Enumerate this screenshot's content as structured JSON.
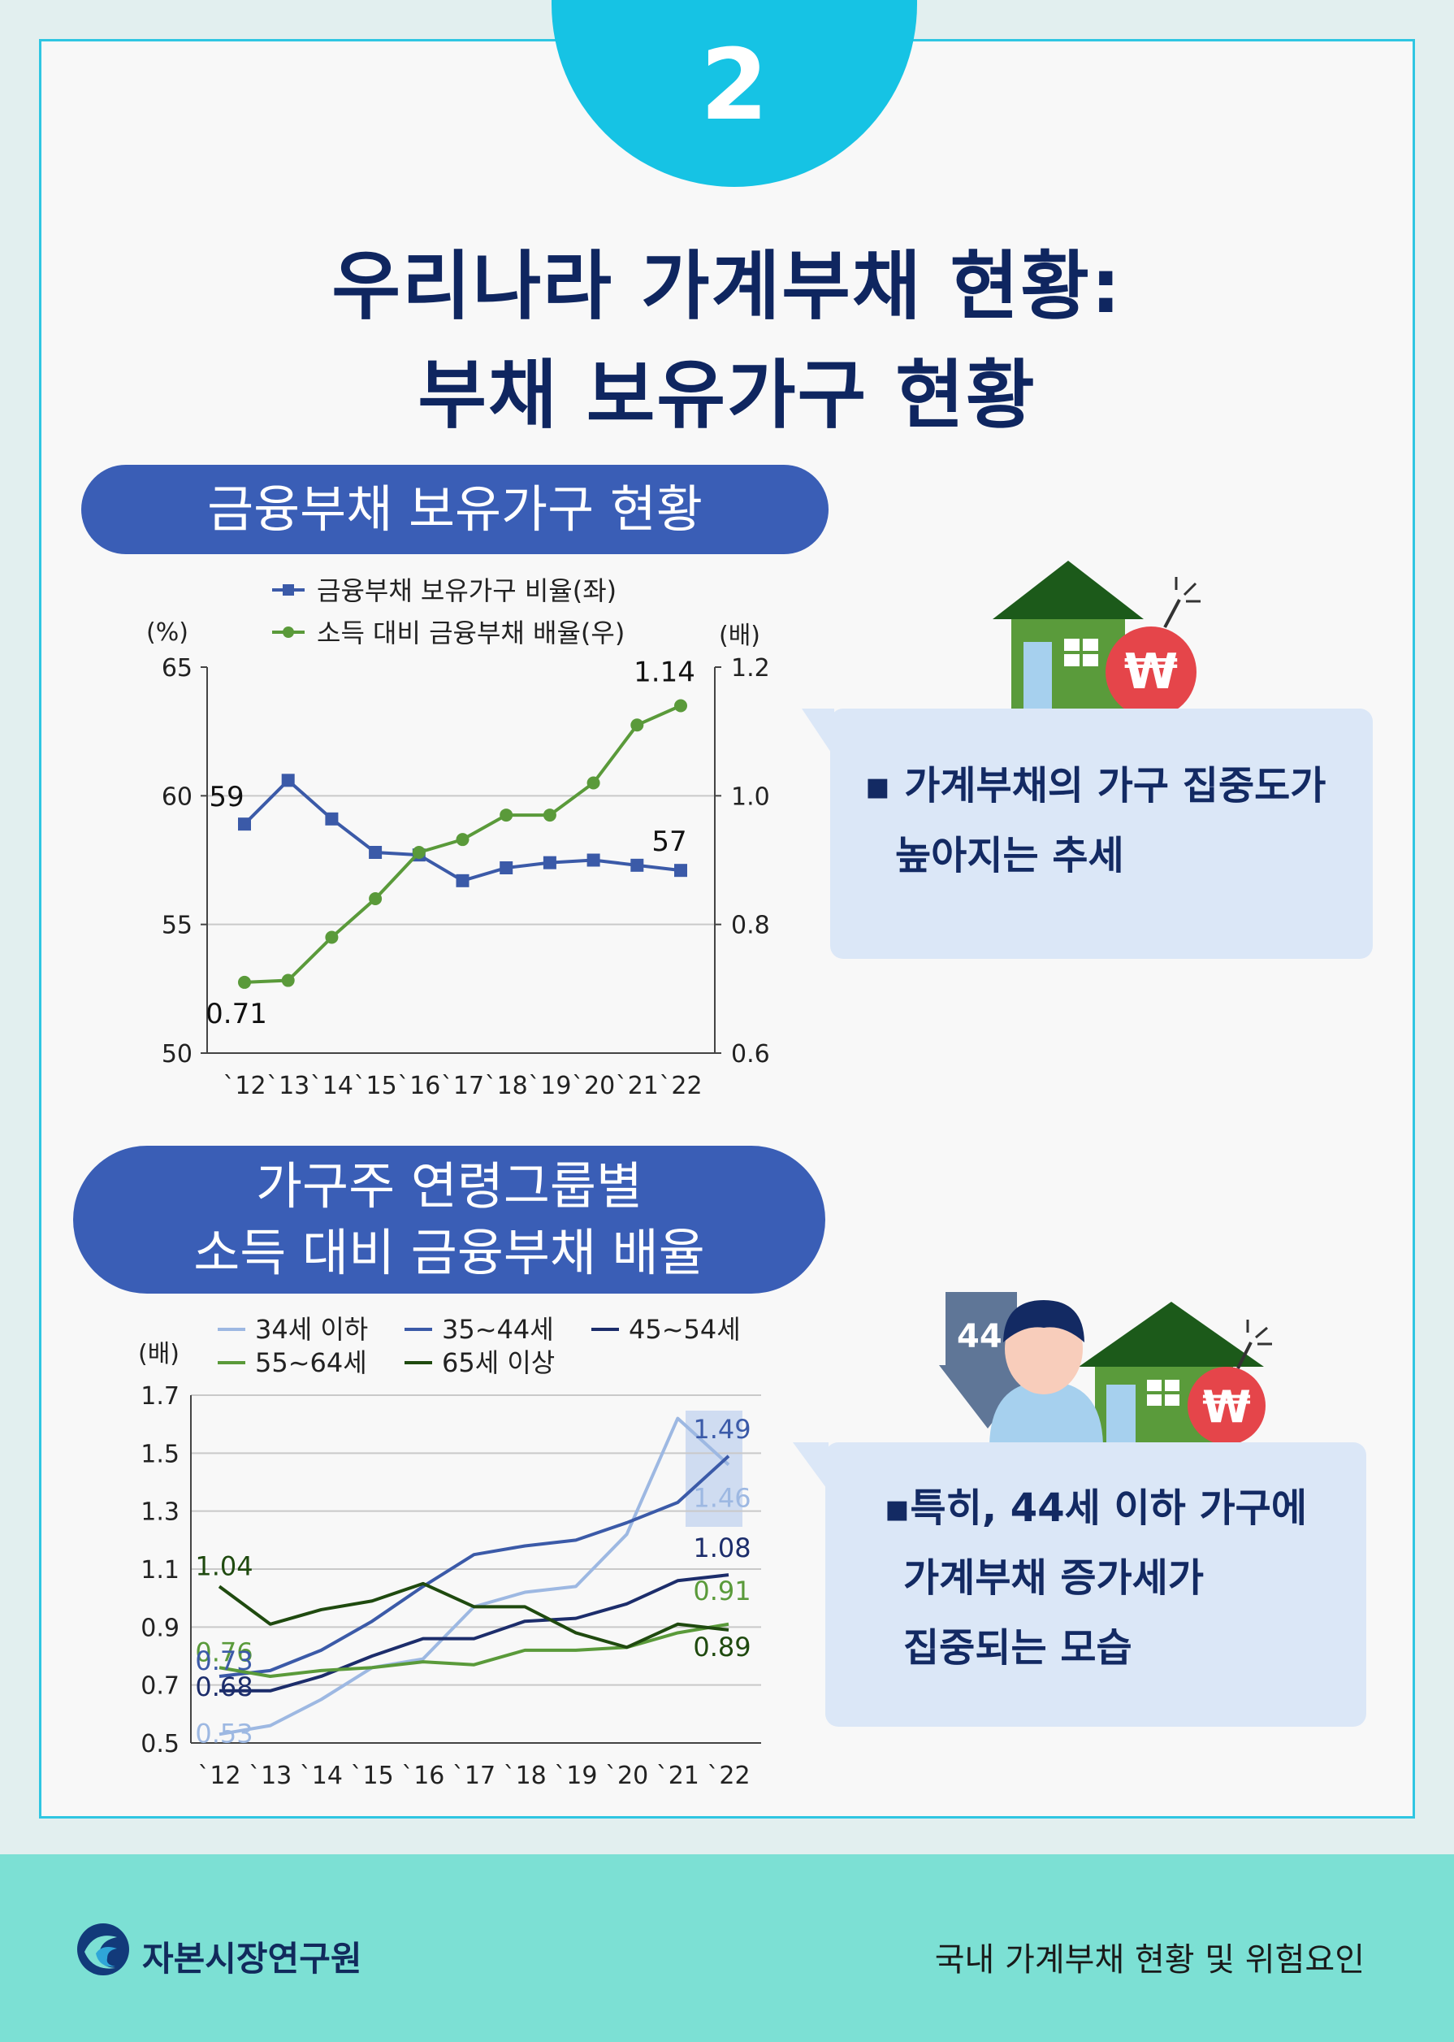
{
  "badge": "2",
  "title": {
    "line1": "우리나라 가계부채 현황:",
    "line2": "부채 보유가구 현황"
  },
  "section1": {
    "pill": "금융부채 보유가구 현황",
    "callout": [
      "▪ 가계부채의 가구 집중도가",
      "높아지는 추세"
    ]
  },
  "section2": {
    "pill": [
      "가구주 연령그룹별",
      "소득 대비 금융부채 배율"
    ],
    "callout": [
      "▪특히, 44세 이하 가구에",
      "가계부채 증가세가",
      "집중되는 모습"
    ],
    "icon_badge": "44"
  },
  "footer": {
    "org": "자본시장연구원",
    "doc": "국내 가계부채 현황 및 위험요인"
  },
  "colors": {
    "navy": "#0f2660",
    "pill": "#3a5eb6",
    "cyan": "#16c3e4",
    "s_blue": "#3b5aa8",
    "s_green": "#5a9a3a",
    "light_blue": "#9db8e2",
    "dark_navy": "#1c2d6b",
    "dark_green": "#1f4a0f"
  },
  "chart_data": [
    {
      "type": "line",
      "x": [
        "`12",
        "`13",
        "`14",
        "`15",
        "`16",
        "`17",
        "`18",
        "`19",
        "`20",
        "`21",
        "`22"
      ],
      "left_axis": {
        "unit": "(%)",
        "ylim": [
          50,
          65
        ],
        "ticks": [
          "50",
          "55",
          "60",
          "65"
        ]
      },
      "right_axis": {
        "unit": "(배)",
        "ylim": [
          0.6,
          1.2
        ],
        "ticks": [
          "0.6",
          "0.8",
          "1.0",
          "1.2"
        ]
      },
      "legend_position": "top",
      "series": [
        {
          "name": "금융부채 보유가구 비율(좌)",
          "axis": "left",
          "marker": "square",
          "color": "#3b5aa8",
          "values": [
            58.9,
            60.6,
            59.1,
            57.8,
            57.7,
            56.7,
            57.2,
            57.4,
            57.5,
            57.3,
            57.1
          ]
        },
        {
          "name": "소득 대비 금융부채 배율(우)",
          "axis": "right",
          "marker": "circle",
          "color": "#5a9a3a",
          "values": [
            0.71,
            0.713,
            0.78,
            0.84,
            0.912,
            0.932,
            0.97,
            0.97,
            1.02,
            1.11,
            1.14
          ]
        }
      ],
      "annotations": [
        {
          "text": "59",
          "series": 0,
          "index": 0
        },
        {
          "text": "57",
          "series": 0,
          "index": 10
        },
        {
          "text": "0.71",
          "series": 1,
          "index": 0
        },
        {
          "text": "1.14",
          "series": 1,
          "index": 10
        }
      ]
    },
    {
      "type": "line",
      "x": [
        "`12",
        "`13",
        "`14",
        "`15",
        "`16",
        "`17",
        "`18",
        "`19",
        "`20",
        "`21",
        "`22"
      ],
      "y_unit": "(배)",
      "ylim": [
        0.5,
        1.7
      ],
      "yticks": [
        "0.5",
        "0.7",
        "0.9",
        "1.1",
        "1.3",
        "1.5",
        "1.7"
      ],
      "legend_position": "top",
      "series": [
        {
          "name": "34세 이하",
          "color": "#9db8e2",
          "values": [
            0.53,
            0.56,
            0.65,
            0.76,
            0.79,
            0.97,
            1.02,
            1.04,
            1.22,
            1.62,
            1.46
          ]
        },
        {
          "name": "35~44세",
          "color": "#3b5aa8",
          "values": [
            0.73,
            0.75,
            0.82,
            0.92,
            1.04,
            1.15,
            1.18,
            1.2,
            1.26,
            1.33,
            1.49
          ]
        },
        {
          "name": "45~54세",
          "color": "#1c2d6b",
          "values": [
            0.68,
            0.68,
            0.73,
            0.8,
            0.86,
            0.86,
            0.92,
            0.93,
            0.98,
            1.06,
            1.08
          ]
        },
        {
          "name": "55~64세",
          "color": "#5a9a3a",
          "values": [
            0.76,
            0.73,
            0.75,
            0.76,
            0.78,
            0.77,
            0.82,
            0.82,
            0.83,
            0.88,
            0.91
          ]
        },
        {
          "name": "65세 이상",
          "color": "#1f4a0f",
          "values": [
            1.04,
            0.91,
            0.96,
            0.99,
            1.05,
            0.97,
            0.97,
            0.88,
            0.83,
            0.91,
            0.89
          ]
        }
      ],
      "annotations": [
        {
          "text": "1.04",
          "series": 4,
          "index": 0
        },
        {
          "text": "0.76",
          "series": 3,
          "index": 0
        },
        {
          "text": "0.73",
          "series": 1,
          "index": 0
        },
        {
          "text": "0.68",
          "series": 2,
          "index": 0
        },
        {
          "text": "0.53",
          "series": 0,
          "index": 0
        },
        {
          "text": "1.49",
          "series": 1,
          "index": 10
        },
        {
          "text": "1.46",
          "series": 0,
          "index": 10
        },
        {
          "text": "1.08",
          "series": 2,
          "index": 10
        },
        {
          "text": "0.91",
          "series": 3,
          "index": 10
        },
        {
          "text": "0.89",
          "series": 4,
          "index": 10
        }
      ]
    }
  ]
}
